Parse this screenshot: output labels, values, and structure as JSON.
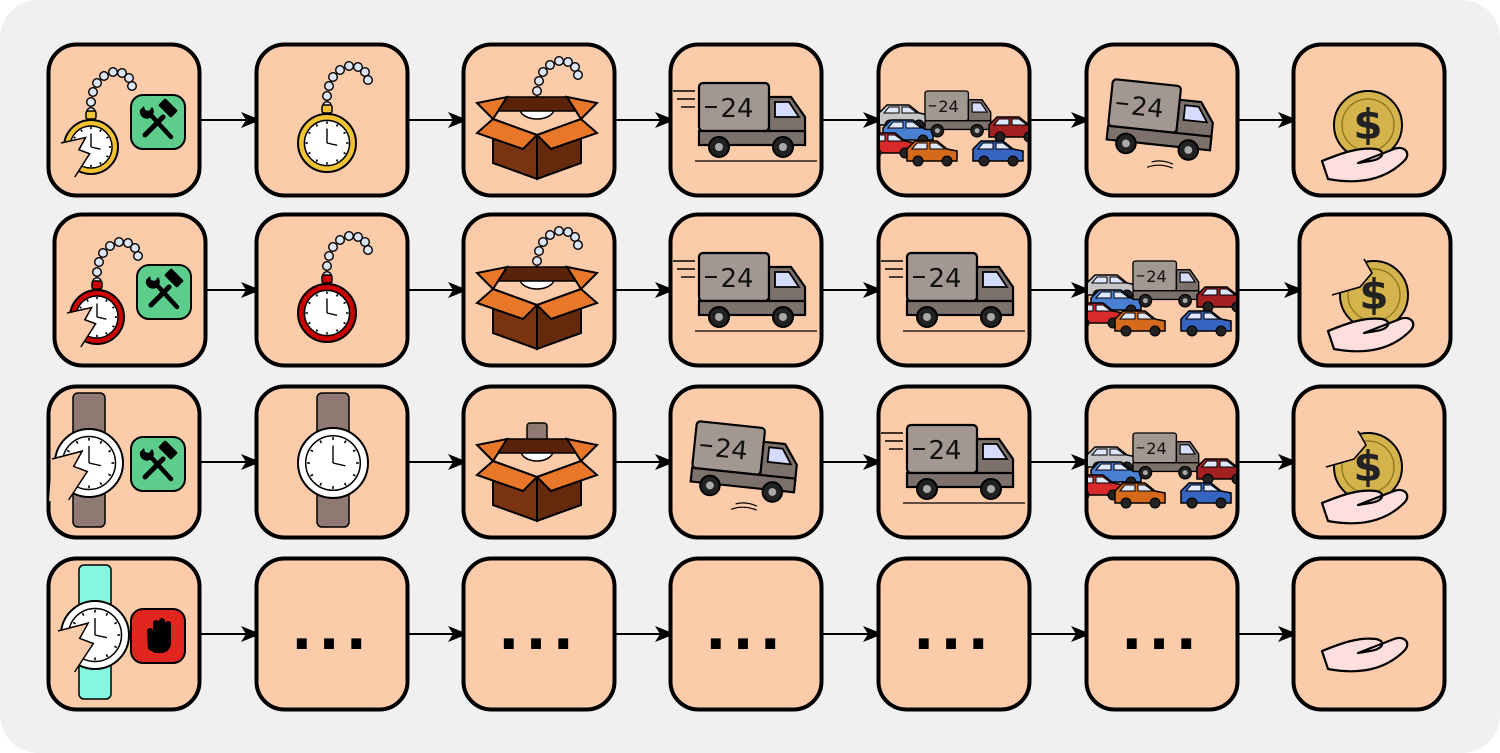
{
  "diagram": {
    "colors": {
      "panel": "#f0f0f0",
      "tile": "#fccbaa",
      "stroke": "#000000",
      "repair": "#5dcd8c",
      "stop": "#e2251f",
      "gold": "#f1c232",
      "red_watch": "#cc0000",
      "strap": "#8e7a73",
      "strap_teal": "#84f8e0",
      "box_light": "#e8772a",
      "box_dark": "#7a3310",
      "truck": "#a39791",
      "coin": "#d4b24c",
      "hand": "#ffdede",
      "chain": "#dde6f6"
    },
    "rows": [
      {
        "id": "row-1",
        "cells": [
          {
            "icon": "broken-pocket-watch-gold-icon",
            "badge": "repair-tools-icon"
          },
          {
            "icon": "pocket-watch-gold-icon"
          },
          {
            "icon": "box-with-watch-icon"
          },
          {
            "icon": "delivery-truck-icon",
            "truck_label": "24"
          },
          {
            "icon": "truck-in-traffic-icon",
            "truck_label": "24"
          },
          {
            "icon": "truck-crashed-icon",
            "truck_label": "24"
          },
          {
            "icon": "hand-with-coin-icon"
          }
        ]
      },
      {
        "id": "row-2",
        "cells": [
          {
            "icon": "broken-pocket-watch-red-icon",
            "badge": "repair-tools-icon"
          },
          {
            "icon": "pocket-watch-red-icon"
          },
          {
            "icon": "box-with-watch-icon"
          },
          {
            "icon": "delivery-truck-icon",
            "truck_label": "24"
          },
          {
            "icon": "delivery-truck-icon",
            "truck_label": "24"
          },
          {
            "icon": "truck-in-traffic-icon",
            "truck_label": "24"
          },
          {
            "icon": "hand-with-broken-coin-icon"
          }
        ]
      },
      {
        "id": "row-3",
        "cells": [
          {
            "icon": "broken-wristwatch-icon",
            "badge": "repair-tools-icon"
          },
          {
            "icon": "wristwatch-icon"
          },
          {
            "icon": "box-with-wristwatch-icon"
          },
          {
            "icon": "truck-crashed-icon",
            "truck_label": "24"
          },
          {
            "icon": "delivery-truck-icon",
            "truck_label": "24"
          },
          {
            "icon": "truck-in-traffic-icon",
            "truck_label": "24"
          },
          {
            "icon": "hand-with-broken-coin-icon"
          }
        ]
      },
      {
        "id": "row-4",
        "cells": [
          {
            "icon": "broken-wristwatch-teal-icon",
            "badge": "stop-hand-icon"
          },
          {
            "icon": "ellipsis-icon",
            "text": "..."
          },
          {
            "icon": "ellipsis-icon",
            "text": "..."
          },
          {
            "icon": "ellipsis-icon",
            "text": "..."
          },
          {
            "icon": "ellipsis-icon",
            "text": "..."
          },
          {
            "icon": "ellipsis-icon",
            "text": "..."
          },
          {
            "icon": "empty-hand-icon"
          }
        ]
      }
    ]
  }
}
